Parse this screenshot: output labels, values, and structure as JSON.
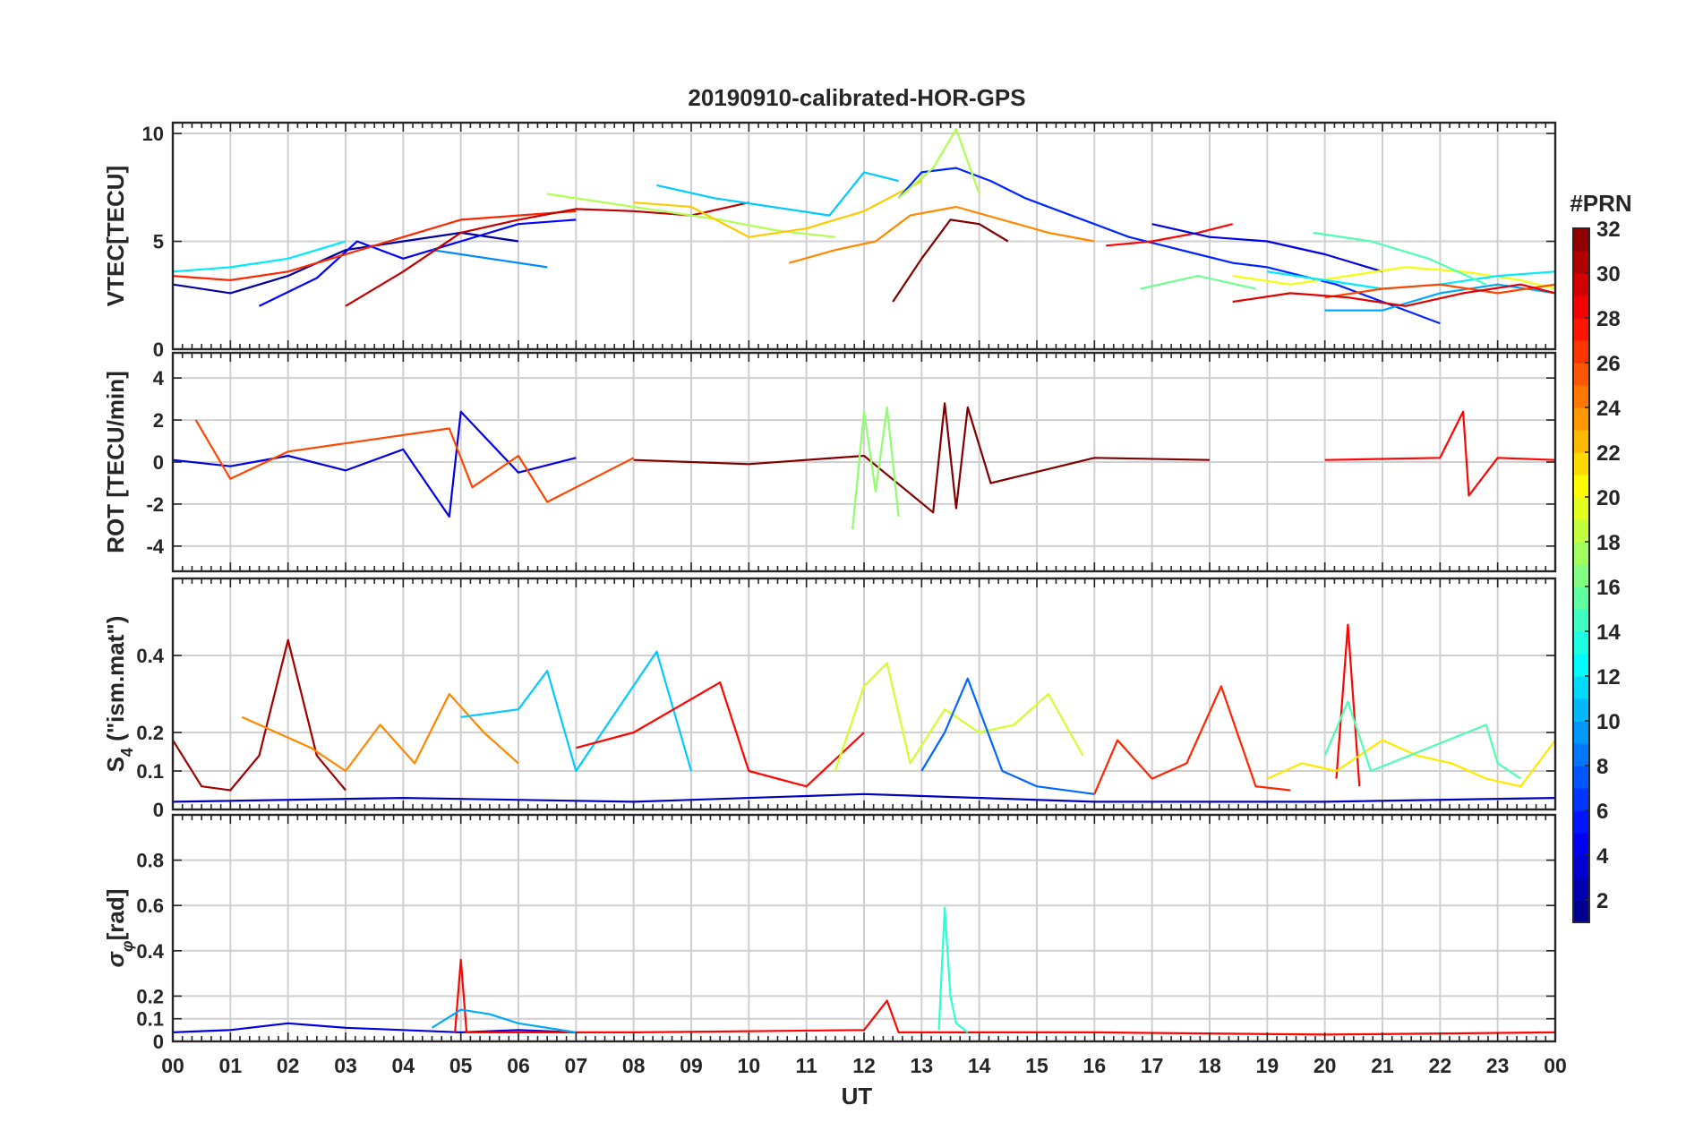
{
  "figure": {
    "title": "20190910-calibrated-HOR-GPS",
    "xlabel": "UT",
    "x_ticks": [
      "00",
      "01",
      "02",
      "03",
      "04",
      "05",
      "06",
      "07",
      "08",
      "09",
      "10",
      "11",
      "12",
      "13",
      "14",
      "15",
      "16",
      "17",
      "18",
      "19",
      "20",
      "21",
      "22",
      "23",
      "00"
    ]
  },
  "chart_data": [
    {
      "type": "line",
      "panel": "VTEC",
      "ylabel": "VTEC[TECU]",
      "xlim": [
        0,
        24
      ],
      "ylim": [
        0,
        10.5
      ],
      "y_ticks": [
        0,
        5,
        10
      ],
      "grid": true,
      "series": [
        {
          "prn": 2,
          "x": [
            0.0,
            1.0,
            2.0,
            3.0,
            4.0,
            5.0,
            6.0
          ],
          "y": [
            3.0,
            2.6,
            3.4,
            4.6,
            5.0,
            5.4,
            5.0
          ]
        },
        {
          "prn": 5,
          "x": [
            1.5,
            2.5,
            3.2,
            4.0,
            5.0,
            6.0,
            7.0
          ],
          "y": [
            2.0,
            3.3,
            5.0,
            4.2,
            5.0,
            5.8,
            6.0
          ]
        },
        {
          "prn": 9,
          "x": [
            4.5,
            5.5,
            6.5
          ],
          "y": [
            4.6,
            4.2,
            3.8
          ]
        },
        {
          "prn": 12,
          "x": [
            0.0,
            1.0,
            2.0,
            3.0
          ],
          "y": [
            3.6,
            3.8,
            4.2,
            5.0
          ]
        },
        {
          "prn": 27,
          "x": [
            0.0,
            1.0,
            2.0,
            3.0,
            4.0,
            5.0,
            6.0,
            7.0
          ],
          "y": [
            3.4,
            3.2,
            3.6,
            4.4,
            5.2,
            6.0,
            6.2,
            6.4
          ]
        },
        {
          "prn": 30,
          "x": [
            3.0,
            4.0,
            5.0,
            6.0,
            7.0,
            8.0,
            9.0,
            10.0
          ],
          "y": [
            2.0,
            3.6,
            5.4,
            6.0,
            6.5,
            6.4,
            6.2,
            6.8
          ]
        },
        {
          "prn": 18,
          "x": [
            6.5,
            7.5,
            8.5,
            9.5,
            10.5,
            11.5
          ],
          "y": [
            7.2,
            6.8,
            6.4,
            6.0,
            5.5,
            5.2
          ]
        },
        {
          "prn": 11,
          "x": [
            8.4,
            9.4,
            10.4,
            11.4,
            12.0,
            12.6
          ],
          "y": [
            7.6,
            7.0,
            6.6,
            6.2,
            8.2,
            7.8
          ]
        },
        {
          "prn": 22,
          "x": [
            8.0,
            9.0,
            10.0,
            11.0,
            12.0,
            13.0
          ],
          "y": [
            6.8,
            6.6,
            5.2,
            5.6,
            6.4,
            7.8
          ]
        },
        {
          "prn": 6,
          "x": [
            12.6,
            13.0,
            13.6,
            14.2,
            14.8,
            15.4,
            16.0,
            16.6,
            17.2,
            17.8,
            18.4,
            19.0,
            19.6,
            20.2,
            20.8,
            21.4,
            22.0
          ],
          "y": [
            7.0,
            8.2,
            8.4,
            7.8,
            7.0,
            6.4,
            5.8,
            5.2,
            4.8,
            4.4,
            4.0,
            3.8,
            3.4,
            3.0,
            2.4,
            1.8,
            1.2
          ]
        },
        {
          "prn": 18,
          "x": [
            12.6,
            13.2,
            13.6,
            14.0
          ],
          "y": [
            7.0,
            8.4,
            10.2,
            7.2
          ]
        },
        {
          "prn": 32,
          "x": [
            12.5,
            13.0,
            13.5,
            14.0,
            14.5
          ],
          "y": [
            2.2,
            4.2,
            6.0,
            5.8,
            5.0
          ]
        },
        {
          "prn": 24,
          "x": [
            10.7,
            11.5,
            12.2,
            12.8,
            13.6,
            14.4,
            15.2,
            16.0
          ],
          "y": [
            4.0,
            4.6,
            5.0,
            6.2,
            6.6,
            6.0,
            5.4,
            5.0
          ]
        },
        {
          "prn": 28,
          "x": [
            16.2,
            17.0,
            17.8,
            18.4
          ],
          "y": [
            4.8,
            5.0,
            5.4,
            5.8
          ]
        },
        {
          "prn": 4,
          "x": [
            17.0,
            18.0,
            19.0,
            20.0,
            21.0
          ],
          "y": [
            5.8,
            5.2,
            5.0,
            4.4,
            3.6
          ]
        },
        {
          "prn": 16,
          "x": [
            16.8,
            17.8,
            18.8
          ],
          "y": [
            2.8,
            3.4,
            2.8
          ]
        },
        {
          "prn": 20,
          "x": [
            18.4,
            19.4,
            20.4,
            21.4,
            22.4,
            23.4,
            24.0
          ],
          "y": [
            3.4,
            3.0,
            3.4,
            3.8,
            3.6,
            3.2,
            2.8
          ]
        },
        {
          "prn": 12,
          "x": [
            19.0,
            20.0,
            21.0,
            22.0,
            23.0,
            24.0
          ],
          "y": [
            3.6,
            3.2,
            2.8,
            3.0,
            3.4,
            3.6
          ]
        },
        {
          "prn": 10,
          "x": [
            20.0,
            21.0,
            22.0,
            23.0,
            24.0
          ],
          "y": [
            1.8,
            1.8,
            2.6,
            3.0,
            2.6
          ]
        },
        {
          "prn": 26,
          "x": [
            20.0,
            21.0,
            22.0,
            23.0,
            24.0
          ],
          "y": [
            2.4,
            2.8,
            3.0,
            2.6,
            3.0
          ]
        },
        {
          "prn": 29,
          "x": [
            18.4,
            19.4,
            20.4,
            21.4,
            22.4,
            23.4,
            24.0
          ],
          "y": [
            2.2,
            2.6,
            2.4,
            2.0,
            2.6,
            3.0,
            2.6
          ]
        },
        {
          "prn": 15,
          "x": [
            19.8,
            20.8,
            21.8,
            22.8
          ],
          "y": [
            5.4,
            5.0,
            4.2,
            3.0
          ]
        }
      ]
    },
    {
      "type": "line",
      "panel": "ROT",
      "ylabel": "ROT [TECU/min]",
      "xlim": [
        0,
        24
      ],
      "ylim": [
        -5.2,
        5.2
      ],
      "y_ticks": [
        -4,
        -2,
        0,
        2,
        4
      ],
      "grid": true,
      "series": [
        {
          "prn": 4,
          "x": [
            0.0,
            1.0,
            2.0,
            3.0,
            4.0,
            4.8,
            5.0,
            6.0,
            7.0
          ],
          "y": [
            0.1,
            -0.2,
            0.3,
            -0.4,
            0.6,
            -2.6,
            2.4,
            -0.5,
            0.2
          ]
        },
        {
          "prn": 26,
          "x": [
            0.4,
            1.0,
            2.0,
            4.8,
            5.2,
            6.0,
            6.5,
            8.0
          ],
          "y": [
            2.0,
            -0.8,
            0.5,
            1.6,
            -1.2,
            0.3,
            -1.9,
            0.2
          ]
        },
        {
          "prn": 32,
          "x": [
            8.0,
            10.0,
            12.0,
            13.2,
            13.4,
            13.6,
            13.8,
            14.2,
            16.0,
            18.0
          ],
          "y": [
            0.1,
            -0.1,
            0.3,
            -2.4,
            2.8,
            -2.2,
            2.6,
            -1.0,
            0.2,
            0.1
          ]
        },
        {
          "prn": 17,
          "x": [
            11.8,
            12.0,
            12.2,
            12.4,
            12.6
          ],
          "y": [
            -3.2,
            2.4,
            -1.4,
            2.6,
            -2.6
          ]
        },
        {
          "prn": 28,
          "x": [
            20.0,
            22.0,
            22.4,
            22.5,
            23.0,
            24.0
          ],
          "y": [
            0.1,
            0.2,
            2.4,
            -1.6,
            0.2,
            0.1
          ]
        }
      ]
    },
    {
      "type": "line",
      "panel": "S4",
      "ylabel": "S4 (\"ism.mat\")",
      "xlim": [
        0,
        24
      ],
      "ylim": [
        0,
        0.6
      ],
      "y_ticks": [
        0,
        0.1,
        0.2,
        0.4
      ],
      "grid": true,
      "series": [
        {
          "prn": 31,
          "x": [
            0.0,
            0.5,
            1.0,
            1.5,
            2.0,
            2.5,
            3.0
          ],
          "y": [
            0.18,
            0.06,
            0.05,
            0.14,
            0.44,
            0.14,
            0.05
          ]
        },
        {
          "prn": 24,
          "x": [
            1.2,
            1.8,
            2.4,
            3.0,
            3.6,
            4.2,
            4.8,
            5.4,
            6.0
          ],
          "y": [
            0.24,
            0.2,
            0.16,
            0.1,
            0.22,
            0.12,
            0.3,
            0.2,
            0.12
          ]
        },
        {
          "prn": 11,
          "x": [
            5.0,
            6.0,
            6.5,
            7.0,
            8.4,
            9.0
          ],
          "y": [
            0.24,
            0.26,
            0.36,
            0.1,
            0.41,
            0.1
          ]
        },
        {
          "prn": 28,
          "x": [
            7.0,
            8.0,
            9.5,
            10.0,
            11.0,
            12.0
          ],
          "y": [
            0.16,
            0.2,
            0.33,
            0.1,
            0.06,
            0.2
          ]
        },
        {
          "prn": 19,
          "x": [
            11.5,
            12.0,
            12.4,
            12.8,
            13.4,
            14.0,
            14.6,
            15.2,
            15.8
          ],
          "y": [
            0.1,
            0.32,
            0.38,
            0.12,
            0.26,
            0.2,
            0.22,
            0.3,
            0.14
          ]
        },
        {
          "prn": 8,
          "x": [
            13.0,
            13.4,
            13.8,
            14.4,
            15.0,
            16.0
          ],
          "y": [
            0.1,
            0.2,
            0.34,
            0.1,
            0.06,
            0.04
          ]
        },
        {
          "prn": 27,
          "x": [
            16.0,
            16.4,
            17.0,
            17.6,
            18.2,
            18.8,
            19.4
          ],
          "y": [
            0.04,
            0.18,
            0.08,
            0.12,
            0.32,
            0.06,
            0.05
          ]
        },
        {
          "prn": 28,
          "x": [
            20.2,
            20.4,
            20.6
          ],
          "y": [
            0.08,
            0.48,
            0.06
          ]
        },
        {
          "prn": 21,
          "x": [
            19.0,
            19.6,
            20.2,
            21.0,
            21.6,
            22.2,
            22.8,
            23.4,
            24.0
          ],
          "y": [
            0.08,
            0.12,
            0.1,
            0.18,
            0.14,
            0.12,
            0.08,
            0.06,
            0.18
          ]
        },
        {
          "prn": 15,
          "x": [
            20.0,
            20.4,
            20.8,
            22.8,
            23.0,
            23.4
          ],
          "y": [
            0.14,
            0.28,
            0.1,
            0.22,
            0.12,
            0.08
          ]
        },
        {
          "prn": 3,
          "x": [
            0.0,
            4.0,
            8.0,
            12.0,
            16.0,
            20.0,
            24.0
          ],
          "y": [
            0.02,
            0.03,
            0.02,
            0.04,
            0.02,
            0.02,
            0.03
          ]
        }
      ]
    },
    {
      "type": "line",
      "panel": "sigma_phi",
      "ylabel": "σφ[rad]",
      "xlim": [
        0,
        24
      ],
      "ylim": [
        0,
        1.0
      ],
      "y_ticks": [
        0,
        0.1,
        0.2,
        0.4,
        0.6,
        0.8
      ],
      "grid": true,
      "series": [
        {
          "prn": 4,
          "x": [
            0.0,
            1.0,
            2.0,
            3.0,
            4.0,
            5.0,
            6.0,
            7.0
          ],
          "y": [
            0.04,
            0.05,
            0.08,
            0.06,
            0.05,
            0.04,
            0.05,
            0.04
          ]
        },
        {
          "prn": 28,
          "x": [
            4.9,
            5.0,
            5.1,
            8.0,
            12.0,
            12.4,
            12.6,
            16.0,
            20.0,
            24.0
          ],
          "y": [
            0.04,
            0.36,
            0.04,
            0.04,
            0.05,
            0.18,
            0.04,
            0.04,
            0.03,
            0.04
          ]
        },
        {
          "prn": 14,
          "x": [
            13.3,
            13.4,
            13.5,
            13.6,
            13.8
          ],
          "y": [
            0.05,
            0.59,
            0.2,
            0.08,
            0.04
          ]
        },
        {
          "prn": 10,
          "x": [
            4.5,
            5.0,
            5.5,
            6.0,
            7.0
          ],
          "y": [
            0.06,
            0.14,
            0.12,
            0.08,
            0.04
          ]
        }
      ]
    },
    {
      "type": "colorbar",
      "label": "#PRN",
      "range": [
        1,
        32
      ],
      "ticks": [
        2,
        4,
        6,
        8,
        10,
        12,
        14,
        16,
        18,
        20,
        22,
        24,
        26,
        28,
        30,
        32
      ],
      "colormap": "jet"
    }
  ]
}
